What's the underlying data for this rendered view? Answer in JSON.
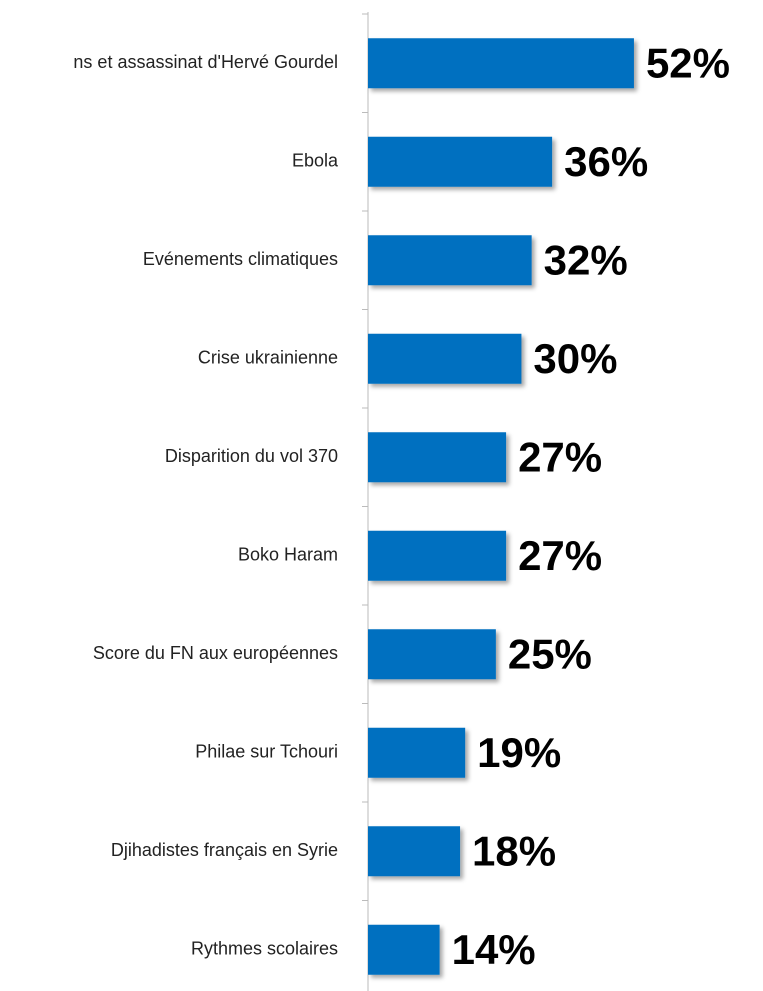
{
  "chart_data": {
    "type": "bar",
    "orientation": "horizontal",
    "categories": [
      "ns et assassinat d'Hervé Gourdel",
      "Ebola",
      "Evénements climatiques",
      "Crise ukrainienne",
      "Disparition du vol 370",
      "Boko Haram",
      "Score du FN aux européennes",
      "Philae sur Tchouri",
      "Djihadistes français en Syrie",
      "Rythmes scolaires"
    ],
    "values": [
      52,
      36,
      32,
      30,
      27,
      27,
      25,
      19,
      18,
      14
    ],
    "value_labels": [
      "52%",
      "36%",
      "32%",
      "30%",
      "27%",
      "27%",
      "25%",
      "19%",
      "18%",
      "14%"
    ],
    "color": "#0070c0",
    "xlim": [
      0,
      70
    ]
  }
}
